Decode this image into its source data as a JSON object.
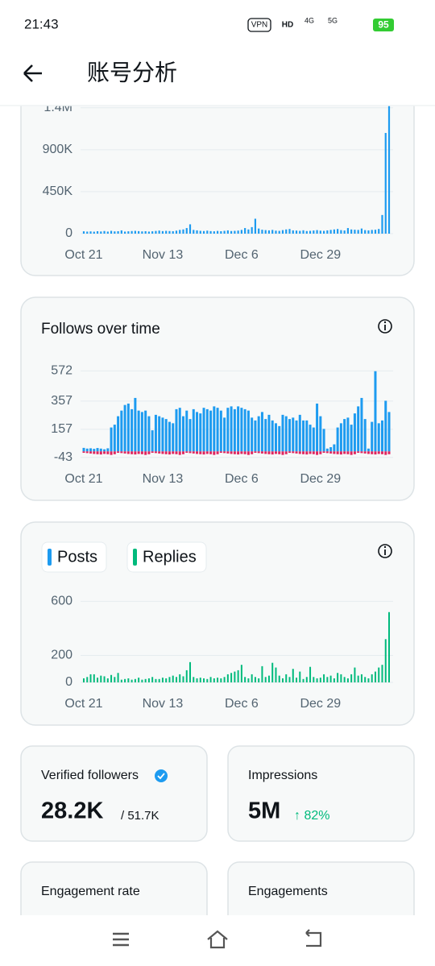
{
  "status_bar": {
    "time": "21:43",
    "vpn": "VPN",
    "hd": "HD",
    "net1": "4G",
    "net2": "5G",
    "battery": "95"
  },
  "header": {
    "title": "账号分析"
  },
  "chart_data": [
    {
      "type": "bar",
      "categories": [
        "Oct 21",
        null,
        null,
        null,
        null,
        null,
        null,
        null,
        null,
        null,
        null,
        null,
        null,
        null,
        null,
        null,
        null,
        null,
        null,
        null,
        null,
        null,
        null,
        "Nov 13",
        null,
        null,
        null,
        null,
        null,
        null,
        null,
        null,
        null,
        null,
        null,
        null,
        null,
        null,
        null,
        null,
        null,
        null,
        null,
        null,
        null,
        null,
        "Dec 6",
        null,
        null,
        null,
        null,
        null,
        null,
        null,
        null,
        null,
        null,
        null,
        null,
        null,
        null,
        null,
        null,
        null,
        null,
        null,
        null,
        null,
        null,
        "Dec 29",
        null,
        null,
        null,
        null,
        null,
        null,
        null,
        null,
        null,
        null,
        null,
        null,
        null,
        null,
        null,
        null,
        null,
        null,
        null,
        null
      ],
      "values": [
        25000,
        22000,
        24000,
        21000,
        26000,
        23000,
        28000,
        22000,
        30000,
        24000,
        26000,
        35000,
        22000,
        25000,
        28000,
        30000,
        27000,
        24000,
        26000,
        22000,
        25000,
        29000,
        33000,
        27000,
        30000,
        28000,
        26000,
        32000,
        40000,
        45000,
        60000,
        100000,
        40000,
        35000,
        30000,
        28000,
        32000,
        27000,
        25000,
        29000,
        26000,
        30000,
        35000,
        28000,
        30000,
        33000,
        40000,
        60000,
        45000,
        70000,
        160000,
        55000,
        42000,
        38000,
        35000,
        40000,
        32000,
        30000,
        38000,
        45000,
        50000,
        35000,
        33000,
        30000,
        36000,
        28000,
        30000,
        34000,
        38000,
        32000,
        30000,
        35000,
        40000,
        45000,
        50000,
        38000,
        34000,
        60000,
        45000,
        42000,
        40000,
        55000,
        38000,
        35000,
        40000,
        42000,
        50000,
        200000,
        1080000,
        1380000
      ],
      "color": "#1d9bf0",
      "ylim": [
        0,
        1400000
      ],
      "yticks": [
        {
          "value": 0,
          "label": "0"
        },
        {
          "value": 450000,
          "label": "450K"
        },
        {
          "value": 900000,
          "label": "900K"
        },
        {
          "value": 1350000,
          "label": "1.4M"
        }
      ],
      "grid": true
    },
    {
      "type": "bar",
      "title": "Follows over time",
      "categories": [
        "Oct 21",
        null,
        null,
        null,
        null,
        null,
        null,
        null,
        null,
        null,
        null,
        null,
        null,
        null,
        null,
        null,
        null,
        null,
        null,
        null,
        null,
        null,
        null,
        "Nov 13",
        null,
        null,
        null,
        null,
        null,
        null,
        null,
        null,
        null,
        null,
        null,
        null,
        null,
        null,
        null,
        null,
        null,
        null,
        null,
        null,
        null,
        null,
        "Dec 6",
        null,
        null,
        null,
        null,
        null,
        null,
        null,
        null,
        null,
        null,
        null,
        null,
        null,
        null,
        null,
        null,
        null,
        null,
        null,
        null,
        null,
        null,
        "Dec 29",
        null,
        null,
        null,
        null,
        null,
        null,
        null,
        null,
        null,
        null,
        null,
        null,
        null,
        null,
        null,
        null,
        null,
        null,
        null,
        null
      ],
      "series": [
        {
          "color": "#1d9bf0",
          "values": [
            25,
            20,
            22,
            18,
            24,
            20,
            15,
            22,
            170,
            190,
            250,
            290,
            330,
            340,
            300,
            380,
            290,
            280,
            290,
            250,
            150,
            260,
            250,
            240,
            230,
            210,
            200,
            300,
            310,
            250,
            290,
            230,
            300,
            280,
            270,
            310,
            300,
            290,
            320,
            310,
            290,
            240,
            310,
            320,
            300,
            320,
            310,
            300,
            290,
            240,
            220,
            250,
            280,
            230,
            260,
            220,
            200,
            180,
            260,
            250,
            230,
            240,
            220,
            260,
            220,
            220,
            190,
            170,
            340,
            250,
            160,
            20,
            30,
            50,
            170,
            200,
            230,
            240,
            190,
            270,
            320,
            380,
            230,
            20,
            210,
            570,
            200,
            220,
            360,
            280
          ]
        },
        {
          "color": "#e0245e",
          "values": [
            -10,
            -12,
            -15,
            -18,
            -20,
            -22,
            -18,
            -20,
            -25,
            -20,
            -10,
            -12,
            -15,
            -18,
            -20,
            -22,
            -18,
            -20,
            -25,
            -20,
            -10,
            -12,
            -15,
            -18,
            -20,
            -22,
            -18,
            -20,
            -25,
            -20,
            -10,
            -12,
            -15,
            -18,
            -20,
            -22,
            -18,
            -20,
            -25,
            -20,
            -10,
            -12,
            -15,
            -18,
            -20,
            -22,
            -18,
            -20,
            -25,
            -20,
            -10,
            -12,
            -15,
            -18,
            -20,
            -22,
            -18,
            -20,
            -25,
            -20,
            -10,
            -12,
            -15,
            -18,
            -20,
            -22,
            -18,
            -20,
            -25,
            -20,
            -10,
            -12,
            -15,
            -18,
            -20,
            -22,
            -18,
            -20,
            -25,
            -20,
            -10,
            -12,
            -15,
            -18,
            -20,
            -22,
            -18,
            -20,
            -25,
            -20
          ]
        }
      ],
      "ylim": [
        -50,
        580
      ],
      "yticks": [
        -43,
        157,
        357,
        572
      ],
      "grid": true
    },
    {
      "type": "bar",
      "legend": [
        {
          "name": "Posts",
          "color": "#1d9bf0"
        },
        {
          "name": "Replies",
          "color": "#00ba7c"
        }
      ],
      "categories": [
        "Oct 21",
        null,
        null,
        null,
        null,
        null,
        null,
        null,
        null,
        null,
        null,
        null,
        null,
        null,
        null,
        null,
        null,
        null,
        null,
        null,
        null,
        null,
        null,
        "Nov 13",
        null,
        null,
        null,
        null,
        null,
        null,
        null,
        null,
        null,
        null,
        null,
        null,
        null,
        null,
        null,
        null,
        null,
        null,
        null,
        null,
        null,
        null,
        "Dec 6",
        null,
        null,
        null,
        null,
        null,
        null,
        null,
        null,
        null,
        null,
        null,
        null,
        null,
        null,
        null,
        null,
        null,
        null,
        null,
        null,
        null,
        null,
        "Dec 29",
        null,
        null,
        null,
        null,
        null,
        null,
        null,
        null,
        null,
        null,
        null,
        null,
        null,
        null,
        null,
        null,
        null,
        null,
        null,
        null
      ],
      "values": [
        30,
        40,
        60,
        60,
        35,
        50,
        45,
        30,
        55,
        40,
        70,
        20,
        25,
        30,
        20,
        25,
        35,
        20,
        25,
        30,
        40,
        25,
        25,
        35,
        30,
        40,
        50,
        40,
        60,
        45,
        90,
        150,
        40,
        30,
        35,
        30,
        25,
        40,
        30,
        35,
        30,
        40,
        60,
        70,
        80,
        90,
        130,
        40,
        30,
        60,
        40,
        30,
        120,
        40,
        50,
        145,
        110,
        50,
        30,
        60,
        40,
        100,
        35,
        80,
        25,
        40,
        115,
        40,
        30,
        35,
        60,
        40,
        50,
        30,
        70,
        60,
        40,
        30,
        60,
        110,
        50,
        60,
        40,
        30,
        60,
        80,
        110,
        130,
        320,
        520
      ],
      "color": "#00ba7c",
      "ylim": [
        0,
        620
      ],
      "yticks": [
        0,
        200,
        600
      ],
      "grid": true
    }
  ],
  "cards": [
    {
      "title": "Verified followers",
      "value": "28.2K",
      "total": "/ 51.7K"
    },
    {
      "title": "Impressions",
      "value": "5M",
      "change": "↑ 82%"
    },
    {
      "title": "Engagement rate"
    },
    {
      "title": "Engagements"
    }
  ]
}
